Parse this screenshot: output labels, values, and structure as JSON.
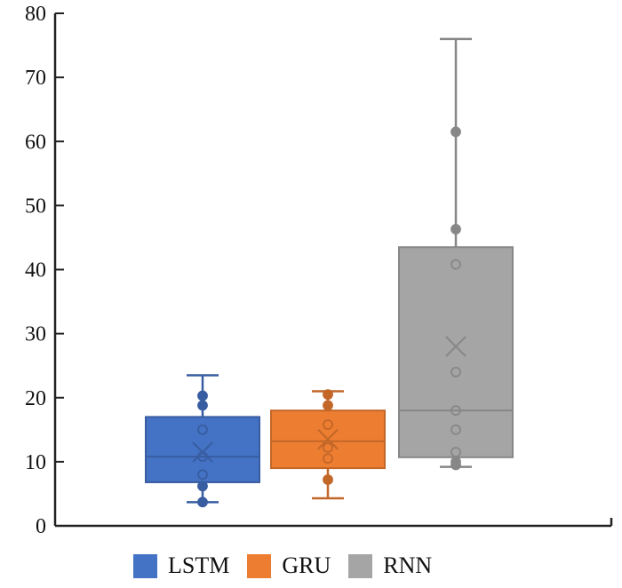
{
  "chart_data": {
    "type": "box",
    "title": "",
    "xlabel": "",
    "ylabel": "",
    "ylim": [
      0,
      80
    ],
    "yticks": [
      0,
      10,
      20,
      30,
      40,
      50,
      60,
      70,
      80
    ],
    "grid": false,
    "legend_position": "bottom",
    "series": [
      {
        "name": "LSTM",
        "color": "#4472C4",
        "whisker_low": 3.7,
        "q1": 6.8,
        "median": 10.8,
        "q3": 17.0,
        "whisker_high": 23.5,
        "mean": 11.5,
        "points": [
          20.3,
          18.8,
          15.0,
          10.8,
          8.0,
          6.2,
          3.7
        ]
      },
      {
        "name": "GRU",
        "color": "#ED7D31",
        "whisker_low": 4.3,
        "q1": 9.0,
        "median": 13.2,
        "q3": 18.0,
        "whisker_high": 21.0,
        "mean": 13.5,
        "points": [
          20.5,
          18.8,
          15.8,
          12.2,
          10.5,
          7.2
        ]
      },
      {
        "name": "RNN",
        "color": "#A5A5A5",
        "whisker_low": 9.2,
        "q1": 10.7,
        "median": 18.0,
        "q3": 43.5,
        "whisker_high": 76.0,
        "mean": 28.0,
        "points": [
          61.5,
          46.3,
          40.8,
          24.0,
          18.0,
          15.0,
          11.5,
          10.0,
          9.5
        ]
      }
    ]
  },
  "legend": {
    "items": [
      {
        "label": "LSTM",
        "color": "#4472C4"
      },
      {
        "label": "GRU",
        "color": "#ED7D31"
      },
      {
        "label": "RNN",
        "color": "#A5A5A5"
      }
    ]
  },
  "axis": {
    "y_labels": [
      "0",
      "10",
      "20",
      "30",
      "40",
      "50",
      "60",
      "70",
      "80"
    ]
  }
}
